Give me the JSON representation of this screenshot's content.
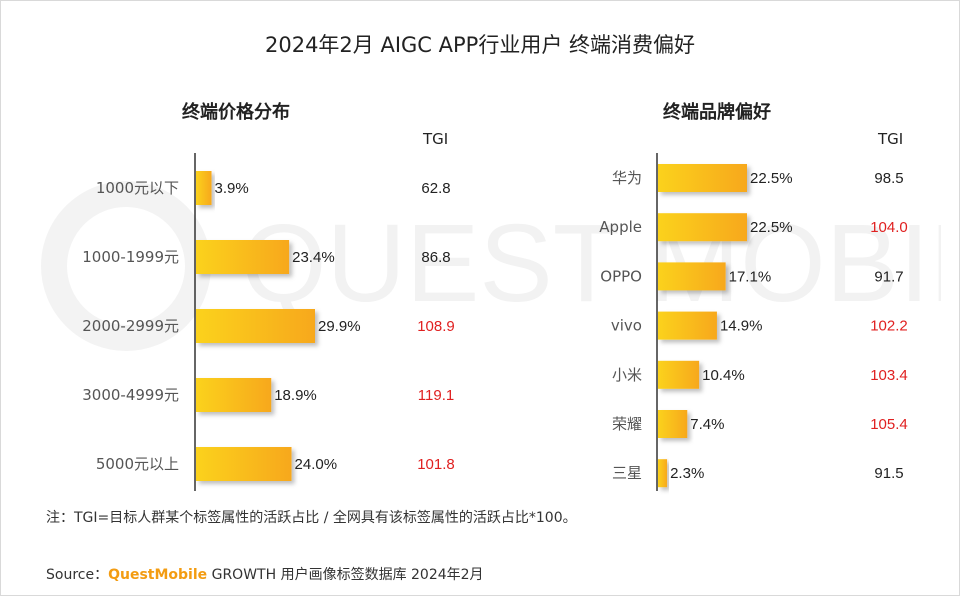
{
  "title": "2024年2月 AIGC APP行业用户 终端消费偏好",
  "watermark": "QUEST MOBILE",
  "colors": {
    "bar_start": "#fbd21a",
    "bar_end": "#f7a81b",
    "tgi_high": "#e02020",
    "tgi_normal": "#222222"
  },
  "left": {
    "subtitle": "终端价格分布",
    "tgi_label": "TGI"
  },
  "right": {
    "subtitle": "终端品牌偏好",
    "tgi_label": "TGI"
  },
  "chart_data": [
    {
      "type": "bar",
      "orientation": "horizontal",
      "title": "终端价格分布",
      "categories": [
        "1000元以下",
        "1000-1999元",
        "2000-2999元",
        "3000-4999元",
        "5000元以上"
      ],
      "values": [
        3.9,
        23.4,
        29.9,
        18.9,
        24.0
      ],
      "value_labels": [
        "3.9%",
        "23.4%",
        "29.9%",
        "18.9%",
        "24.0%"
      ],
      "tgi": [
        "62.8",
        "86.8",
        "108.9",
        "119.1",
        "101.8"
      ],
      "tgi_highlight": [
        false,
        false,
        true,
        true,
        true
      ]
    },
    {
      "type": "bar",
      "orientation": "horizontal",
      "title": "终端品牌偏好",
      "categories": [
        "华为",
        "Apple",
        "OPPO",
        "vivo",
        "小米",
        "荣耀",
        "三星"
      ],
      "values": [
        22.5,
        22.5,
        17.1,
        14.9,
        10.4,
        7.4,
        2.3
      ],
      "value_labels": [
        "22.5%",
        "22.5%",
        "17.1%",
        "14.9%",
        "10.4%",
        "7.4%",
        "2.3%"
      ],
      "tgi": [
        "98.5",
        "104.0",
        "91.7",
        "102.2",
        "103.4",
        "105.4",
        "91.5"
      ],
      "tgi_highlight": [
        false,
        true,
        false,
        true,
        true,
        true,
        false
      ]
    }
  ],
  "note": "注：TGI=目标人群某个标签属性的活跃占比 / 全网具有该标签属性的活跃占比*100。",
  "source": {
    "prefix": "Source：",
    "brand": "QuestMobile",
    "rest": " GROWTH 用户画像标签数据库 2024年2月"
  }
}
